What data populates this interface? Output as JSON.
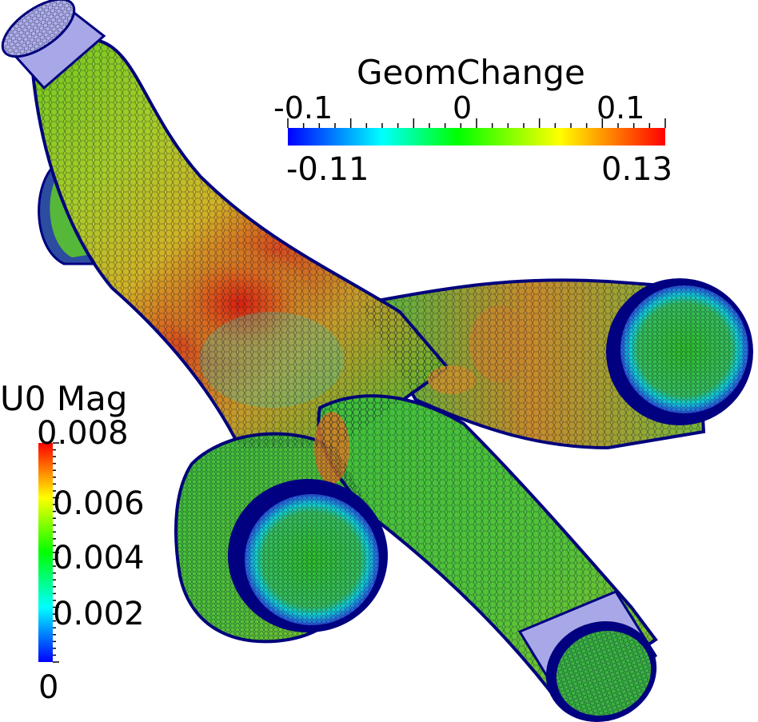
{
  "colorbars": {
    "geom_change": {
      "title": "GeomChange",
      "ticks": [
        "-0.1",
        "0",
        "0.1"
      ],
      "range_min": "-0.11",
      "range_max": "0.13",
      "min_value": -0.11,
      "max_value": 0.13,
      "orientation": "horizontal",
      "colormap": [
        "#0000ff",
        "#00ffff",
        "#00ff00",
        "#ffff00",
        "#ff0000"
      ]
    },
    "u0_mag": {
      "title": "U0 Mag",
      "ticks": [
        "0.008",
        "0.006",
        "0.004",
        "0.002",
        "0"
      ],
      "min_value": 0,
      "max_value": 0.008,
      "orientation": "vertical",
      "colormap": [
        "#0000ff",
        "#00ffff",
        "#00ff00",
        "#ffff00",
        "#ff0000"
      ]
    }
  },
  "scene": {
    "description_icon": "mesh-pipe-junction-icon",
    "colors": {
      "mesh_edge": "#000080",
      "cap_lavender": "#a8a8e8",
      "surface_green": "#3cbf3c",
      "surface_hot": "#e02010"
    }
  }
}
